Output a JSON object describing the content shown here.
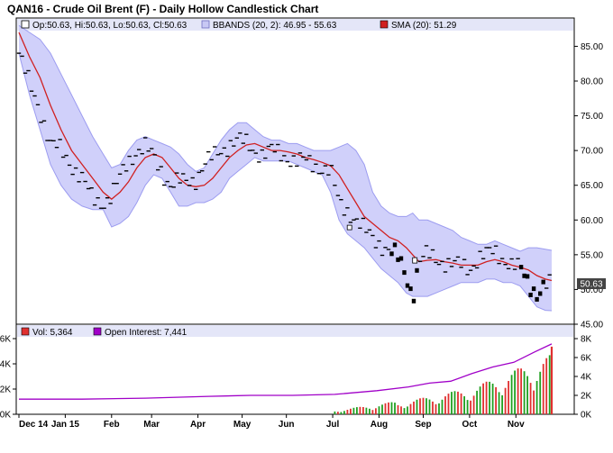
{
  "chart_data": {
    "type": "candlestick",
    "title": "QAN16 - Crude Oil Brent (F) - Daily Hollow Candlestick Chart",
    "legend_main": {
      "ohlc": "Op:50.63, Hi:50.63, Lo:50.63, Cl:50.63",
      "bbands": "BBANDS (20, 2): 46.95 - 55.63",
      "sma": "SMA (20): 51.29"
    },
    "legend_volume": {
      "vol": "Vol: 5,364",
      "oi": "Open Interest: 7,441"
    },
    "last_price_label": "50.63",
    "price_axis": {
      "min": 45,
      "max": 87,
      "ticks": [
        45,
        50,
        55,
        60,
        65,
        70,
        75,
        80,
        85
      ],
      "tick_labels": [
        "45.00",
        "50.00",
        "55.00",
        "60.00",
        "65.00",
        "70.00",
        "75.00",
        "80.00",
        "85.00"
      ]
    },
    "volume_axis_left": {
      "min": 0,
      "max": 6000,
      "ticks": [
        0,
        2000,
        4000,
        6000
      ],
      "tick_labels": [
        "0K",
        "2K",
        "4K",
        "6K"
      ]
    },
    "oi_axis_right": {
      "min": 0,
      "max": 8000,
      "ticks": [
        0,
        2000,
        4000,
        6000,
        8000
      ],
      "tick_labels": [
        "0K",
        "2K",
        "4K",
        "6K",
        "8K"
      ]
    },
    "x_labels": [
      {
        "t": 0,
        "label": "Dec 14"
      },
      {
        "t": 22,
        "label": "Jan 15"
      },
      {
        "t": 44,
        "label": "Feb"
      },
      {
        "t": 63,
        "label": "Mar"
      },
      {
        "t": 85,
        "label": "Apr"
      },
      {
        "t": 106,
        "label": "May"
      },
      {
        "t": 127,
        "label": "Jun"
      },
      {
        "t": 149,
        "label": "Jul"
      },
      {
        "t": 171,
        "label": "Aug"
      },
      {
        "t": 192,
        "label": "Sep"
      },
      {
        "t": 214,
        "label": "Oct"
      },
      {
        "t": 236,
        "label": "Nov"
      }
    ],
    "series_main": [
      {
        "t": 0,
        "c": 84.0,
        "sma": 87.0,
        "bu": 88.0,
        "bl": 84.0
      },
      {
        "t": 5,
        "c": 79.5,
        "sma": 83.5,
        "bu": 87.0,
        "bl": 78.0
      },
      {
        "t": 10,
        "c": 76.0,
        "sma": 80.5,
        "bu": 86.0,
        "bl": 73.0
      },
      {
        "t": 15,
        "c": 71.0,
        "sma": 76.5,
        "bu": 84.0,
        "bl": 68.0
      },
      {
        "t": 20,
        "c": 70.0,
        "sma": 73.0,
        "bu": 81.0,
        "bl": 65.0
      },
      {
        "t": 25,
        "c": 68.0,
        "sma": 70.0,
        "bu": 78.0,
        "bl": 63.0
      },
      {
        "t": 30,
        "c": 66.0,
        "sma": 68.0,
        "bu": 75.0,
        "bl": 62.0
      },
      {
        "t": 35,
        "c": 63.0,
        "sma": 66.0,
        "bu": 72.0,
        "bl": 61.5
      },
      {
        "t": 40,
        "c": 62.5,
        "sma": 64.0,
        "bu": 69.5,
        "bl": 61.5
      },
      {
        "t": 44,
        "c": 63.5,
        "sma": 63.0,
        "bu": 67.5,
        "bl": 59.0
      },
      {
        "t": 48,
        "c": 66.0,
        "sma": 64.0,
        "bu": 68.0,
        "bl": 59.5
      },
      {
        "t": 52,
        "c": 68.5,
        "sma": 65.5,
        "bu": 70.0,
        "bl": 60.5
      },
      {
        "t": 56,
        "c": 70.0,
        "sma": 67.5,
        "bu": 71.5,
        "bl": 62.5
      },
      {
        "t": 60,
        "c": 70.5,
        "sma": 69.0,
        "bu": 72.0,
        "bl": 65.0
      },
      {
        "t": 64,
        "c": 69.0,
        "sma": 69.5,
        "bu": 71.5,
        "bl": 66.5
      },
      {
        "t": 68,
        "c": 67.0,
        "sma": 69.0,
        "bu": 71.0,
        "bl": 66.0
      },
      {
        "t": 72,
        "c": 65.0,
        "sma": 67.5,
        "bu": 70.5,
        "bl": 64.0
      },
      {
        "t": 76,
        "c": 65.5,
        "sma": 66.0,
        "bu": 69.5,
        "bl": 62.0
      },
      {
        "t": 80,
        "c": 65.5,
        "sma": 65.0,
        "bu": 68.0,
        "bl": 62.0
      },
      {
        "t": 84,
        "c": 66.0,
        "sma": 64.8,
        "bu": 67.0,
        "bl": 62.5
      },
      {
        "t": 88,
        "c": 68.0,
        "sma": 65.0,
        "bu": 67.5,
        "bl": 62.5
      },
      {
        "t": 92,
        "c": 69.0,
        "sma": 66.0,
        "bu": 69.5,
        "bl": 63.0
      },
      {
        "t": 96,
        "c": 70.0,
        "sma": 67.5,
        "bu": 71.5,
        "bl": 64.0
      },
      {
        "t": 100,
        "c": 71.0,
        "sma": 69.0,
        "bu": 73.0,
        "bl": 66.0
      },
      {
        "t": 104,
        "c": 71.5,
        "sma": 70.0,
        "bu": 74.0,
        "bl": 67.0
      },
      {
        "t": 108,
        "c": 71.0,
        "sma": 70.8,
        "bu": 74.0,
        "bl": 68.0
      },
      {
        "t": 112,
        "c": 70.0,
        "sma": 71.0,
        "bu": 73.0,
        "bl": 69.0
      },
      {
        "t": 116,
        "c": 69.5,
        "sma": 70.5,
        "bu": 72.0,
        "bl": 68.5
      },
      {
        "t": 120,
        "c": 70.0,
        "sma": 70.0,
        "bu": 71.5,
        "bl": 68.5
      },
      {
        "t": 124,
        "c": 69.5,
        "sma": 70.0,
        "bu": 71.5,
        "bl": 68.5
      },
      {
        "t": 128,
        "c": 69.0,
        "sma": 69.8,
        "bu": 71.0,
        "bl": 68.5
      },
      {
        "t": 132,
        "c": 68.5,
        "sma": 69.5,
        "bu": 71.0,
        "bl": 68.0
      },
      {
        "t": 136,
        "c": 68.5,
        "sma": 69.0,
        "bu": 70.5,
        "bl": 67.5
      },
      {
        "t": 140,
        "c": 68.0,
        "sma": 68.7,
        "bu": 70.0,
        "bl": 67.0
      },
      {
        "t": 144,
        "c": 67.5,
        "sma": 68.3,
        "bu": 70.0,
        "bl": 66.5
      },
      {
        "t": 148,
        "c": 67.0,
        "sma": 67.8,
        "bu": 70.0,
        "bl": 64.0
      },
      {
        "t": 152,
        "c": 62.5,
        "sma": 66.5,
        "bu": 70.5,
        "bl": 60.0
      },
      {
        "t": 156,
        "c": 61.5,
        "sma": 64.5,
        "bu": 71.0,
        "bl": 58.0
      },
      {
        "t": 160,
        "c": 60.0,
        "sma": 62.5,
        "bu": 70.0,
        "bl": 57.0
      },
      {
        "t": 164,
        "c": 58.5,
        "sma": 60.5,
        "bu": 68.0,
        "bl": 56.0
      },
      {
        "t": 168,
        "c": 57.5,
        "sma": 59.5,
        "bu": 64.0,
        "bl": 54.5
      },
      {
        "t": 172,
        "c": 56.5,
        "sma": 58.5,
        "bu": 62.0,
        "bl": 53.0
      },
      {
        "t": 176,
        "c": 55.5,
        "sma": 57.5,
        "bu": 61.0,
        "bl": 52.0
      },
      {
        "t": 180,
        "c": 54.5,
        "sma": 57.0,
        "bu": 60.5,
        "bl": 51.0
      },
      {
        "t": 184,
        "c": 52.0,
        "sma": 56.0,
        "bu": 60.5,
        "bl": 49.5
      },
      {
        "t": 187,
        "c": 49.0,
        "sma": 55.0,
        "bu": 61.0,
        "bl": 49.0
      },
      {
        "t": 190,
        "c": 54.0,
        "sma": 54.0,
        "bu": 60.0,
        "bl": 49.0
      },
      {
        "t": 194,
        "c": 55.0,
        "sma": 54.2,
        "bu": 60.0,
        "bl": 49.0
      },
      {
        "t": 198,
        "c": 54.5,
        "sma": 54.3,
        "bu": 59.5,
        "bl": 49.5
      },
      {
        "t": 202,
        "c": 54.0,
        "sma": 54.0,
        "bu": 59.0,
        "bl": 50.0
      },
      {
        "t": 206,
        "c": 53.5,
        "sma": 53.8,
        "bu": 58.5,
        "bl": 50.5
      },
      {
        "t": 210,
        "c": 53.5,
        "sma": 53.5,
        "bu": 57.5,
        "bl": 51.0
      },
      {
        "t": 214,
        "c": 53.0,
        "sma": 53.5,
        "bu": 57.0,
        "bl": 51.0
      },
      {
        "t": 218,
        "c": 54.5,
        "sma": 53.5,
        "bu": 56.5,
        "bl": 51.0
      },
      {
        "t": 222,
        "c": 55.0,
        "sma": 54.0,
        "bu": 56.5,
        "bl": 51.5
      },
      {
        "t": 226,
        "c": 55.5,
        "sma": 54.3,
        "bu": 57.0,
        "bl": 51.5
      },
      {
        "t": 230,
        "c": 54.5,
        "sma": 54.0,
        "bu": 56.5,
        "bl": 51.0
      },
      {
        "t": 234,
        "c": 53.5,
        "sma": 53.5,
        "bu": 56.0,
        "bl": 51.0
      },
      {
        "t": 238,
        "c": 53.0,
        "sma": 53.2,
        "bu": 55.5,
        "bl": 50.5
      },
      {
        "t": 242,
        "c": 51.0,
        "sma": 52.8,
        "bu": 56.0,
        "bl": 49.0
      },
      {
        "t": 246,
        "c": 49.5,
        "sma": 52.0,
        "bu": 56.0,
        "bl": 47.5
      },
      {
        "t": 250,
        "c": 50.5,
        "sma": 51.5,
        "bu": 55.8,
        "bl": 47.0
      },
      {
        "t": 253,
        "c": 50.63,
        "sma": 51.29,
        "bu": 55.63,
        "bl": 46.95
      }
    ],
    "open_interest": [
      {
        "t": 0,
        "v": 1600
      },
      {
        "t": 30,
        "v": 1600
      },
      {
        "t": 60,
        "v": 1700
      },
      {
        "t": 90,
        "v": 1900
      },
      {
        "t": 110,
        "v": 2000
      },
      {
        "t": 130,
        "v": 2000
      },
      {
        "t": 150,
        "v": 2100
      },
      {
        "t": 170,
        "v": 2500
      },
      {
        "t": 185,
        "v": 2900
      },
      {
        "t": 195,
        "v": 3300
      },
      {
        "t": 205,
        "v": 3500
      },
      {
        "t": 215,
        "v": 4300
      },
      {
        "t": 225,
        "v": 5000
      },
      {
        "t": 235,
        "v": 5500
      },
      {
        "t": 245,
        "v": 6600
      },
      {
        "t": 253,
        "v": 7441
      }
    ],
    "colors": {
      "frame": "#000000",
      "band_fill": "#d0d0fa",
      "band_edge": "#9c9cf0",
      "sma": "#d02020",
      "candle": "#000000",
      "legend_bg": "#e4e6f8",
      "oi_line": "#a000c8",
      "vol_up": "#20a020",
      "vol_down": "#e03030",
      "price_label_bg": "#444444",
      "price_label_text": "#ffffff"
    }
  }
}
